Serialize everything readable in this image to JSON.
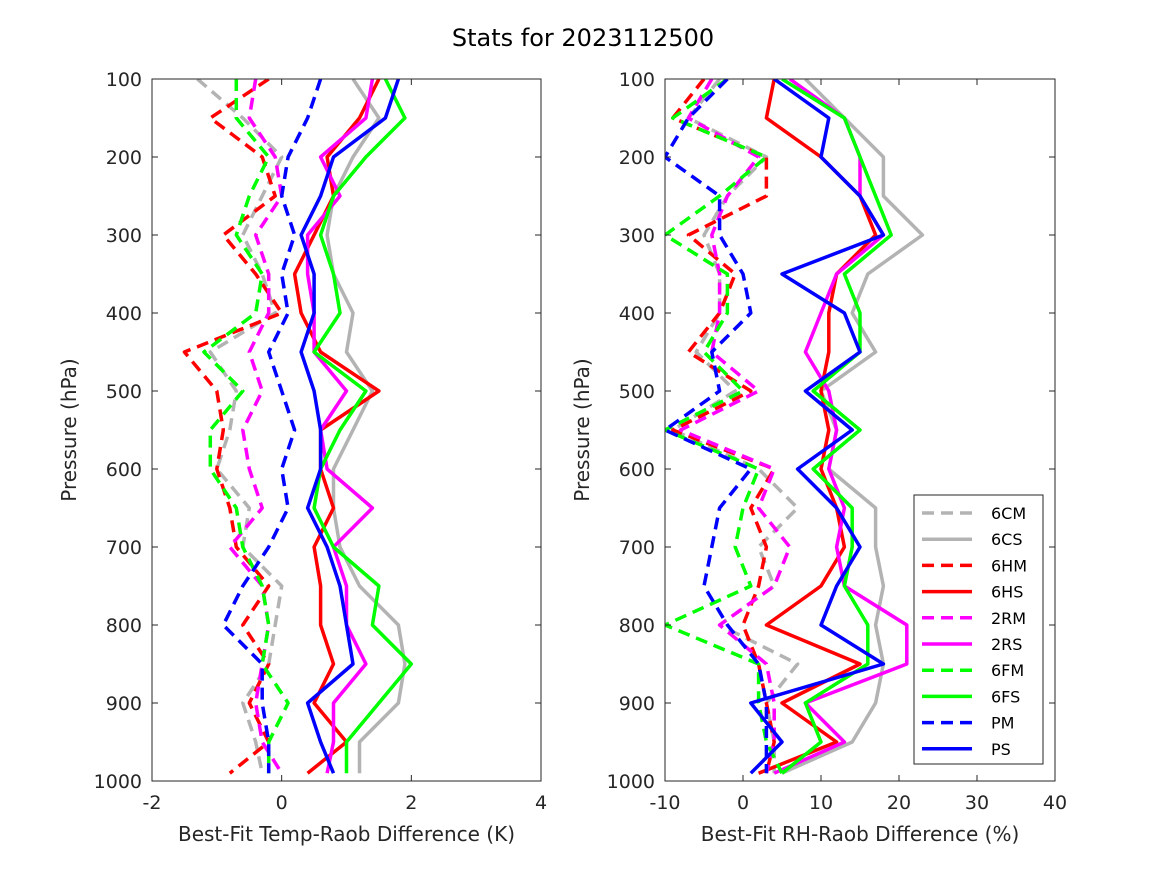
{
  "figure": {
    "title": "Stats for 2023112500"
  },
  "legend": {
    "placement": "bottom-right of right panel",
    "entries": [
      {
        "key": "6CM",
        "color": "#b3b3b3",
        "dash": true
      },
      {
        "key": "6CS",
        "color": "#b3b3b3",
        "dash": false
      },
      {
        "key": "6HM",
        "color": "#ff0000",
        "dash": true
      },
      {
        "key": "6HS",
        "color": "#ff0000",
        "dash": false
      },
      {
        "key": "2RM",
        "color": "#ff00ff",
        "dash": true
      },
      {
        "key": "2RS",
        "color": "#ff00ff",
        "dash": false
      },
      {
        "key": "6FM",
        "color": "#00ff00",
        "dash": true
      },
      {
        "key": "6FS",
        "color": "#00ff00",
        "dash": false
      },
      {
        "key": "PM",
        "color": "#0000ff",
        "dash": true
      },
      {
        "key": "PS",
        "color": "#0000ff",
        "dash": false
      }
    ]
  },
  "chart_data": [
    {
      "type": "line",
      "title": "",
      "xlabel": "Best-Fit Temp-Raob Difference (K)",
      "ylabel": "Pressure (hPa)",
      "xlim": [
        -2,
        4
      ],
      "ylim": [
        100,
        1000
      ],
      "y_reversed": true,
      "xticks": [
        "-2",
        "0",
        "2",
        "4"
      ],
      "yticks": [
        "100",
        "200",
        "300",
        "400",
        "500",
        "600",
        "700",
        "800",
        "900",
        "1000"
      ],
      "pressure": [
        100,
        150,
        200,
        250,
        300,
        350,
        400,
        450,
        500,
        550,
        600,
        650,
        700,
        750,
        800,
        850,
        900,
        950,
        990
      ],
      "series": [
        {
          "name": "6CM",
          "values": [
            -1.3,
            -0.6,
            0.0,
            -0.3,
            -0.6,
            -0.3,
            -0.1,
            -1.1,
            -0.7,
            -0.8,
            -1.0,
            -0.5,
            -0.6,
            0.0,
            -0.1,
            -0.2,
            -0.6,
            -0.4,
            -0.3
          ]
        },
        {
          "name": "6CS",
          "values": [
            1.1,
            1.5,
            1.1,
            0.8,
            0.7,
            0.8,
            1.1,
            1.0,
            1.4,
            1.1,
            0.8,
            0.8,
            0.9,
            1.2,
            1.8,
            1.9,
            1.8,
            1.2,
            1.2
          ]
        },
        {
          "name": "6HM",
          "values": [
            -0.2,
            -1.1,
            -0.3,
            -0.1,
            -0.9,
            -0.4,
            0.0,
            -1.5,
            -1.0,
            -0.9,
            -1.0,
            -0.8,
            -0.7,
            -0.2,
            -0.6,
            -0.2,
            -0.5,
            -0.2,
            -0.8
          ]
        },
        {
          "name": "6HS",
          "values": [
            1.5,
            1.2,
            0.7,
            0.8,
            0.5,
            0.2,
            0.3,
            0.6,
            1.5,
            0.6,
            0.6,
            0.8,
            0.5,
            0.6,
            0.6,
            0.8,
            0.5,
            1.0,
            0.4
          ]
        },
        {
          "name": "2RM",
          "values": [
            -0.4,
            -0.5,
            -0.1,
            0.0,
            -0.4,
            -0.2,
            -0.2,
            -0.5,
            -0.3,
            -0.6,
            -0.5,
            -0.3,
            -0.8,
            -0.3,
            -0.2,
            -0.3,
            -0.4,
            -0.3,
            0.0
          ]
        },
        {
          "name": "2RS",
          "values": [
            1.4,
            1.3,
            0.6,
            0.9,
            0.4,
            0.4,
            0.5,
            0.5,
            1.0,
            0.6,
            0.7,
            1.4,
            0.8,
            1.0,
            1.0,
            1.3,
            0.8,
            0.8,
            0.7
          ]
        },
        {
          "name": "6FM",
          "values": [
            -0.7,
            -0.7,
            -0.2,
            -0.5,
            -0.7,
            -0.3,
            -0.4,
            -1.2,
            -0.6,
            -1.1,
            -1.1,
            -0.7,
            -0.6,
            -0.3,
            -0.2,
            -0.3,
            0.1,
            -0.2,
            -0.2
          ]
        },
        {
          "name": "6FS",
          "values": [
            1.6,
            1.9,
            1.3,
            0.8,
            0.6,
            0.8,
            0.9,
            0.5,
            1.3,
            0.9,
            0.6,
            0.5,
            0.8,
            1.5,
            1.4,
            2.0,
            1.5,
            1.0,
            1.0
          ]
        },
        {
          "name": "PM",
          "values": [
            0.6,
            0.4,
            0.1,
            0.0,
            0.2,
            0.0,
            0.1,
            -0.2,
            0.0,
            0.2,
            0.0,
            0.1,
            -0.2,
            -0.6,
            -0.9,
            -0.3,
            -0.3,
            -0.2,
            -0.2
          ]
        },
        {
          "name": "PS",
          "values": [
            1.8,
            1.6,
            0.8,
            0.6,
            0.3,
            0.5,
            0.5,
            0.3,
            0.5,
            0.6,
            0.6,
            0.4,
            0.7,
            0.9,
            1.0,
            1.1,
            0.4,
            0.6,
            0.8
          ]
        }
      ]
    },
    {
      "type": "line",
      "title": "",
      "xlabel": "Best-Fit RH-Raob Difference (%)",
      "ylabel": "Pressure (hPa)",
      "xlim": [
        -10,
        40
      ],
      "ylim": [
        100,
        1000
      ],
      "y_reversed": true,
      "xticks": [
        "-10",
        "0",
        "10",
        "20",
        "30",
        "40"
      ],
      "yticks": [
        "100",
        "200",
        "300",
        "400",
        "500",
        "600",
        "700",
        "800",
        "900",
        "1000"
      ],
      "pressure": [
        100,
        150,
        200,
        250,
        300,
        350,
        400,
        450,
        500,
        550,
        600,
        650,
        700,
        750,
        800,
        850,
        900,
        950,
        990
      ],
      "series": [
        {
          "name": "6CM",
          "values": [
            -3,
            -7,
            3,
            -2,
            -5,
            -3,
            -3,
            -6,
            -1,
            -9,
            2,
            7,
            2,
            4,
            -3,
            7,
            3,
            4,
            4
          ]
        },
        {
          "name": "6CS",
          "values": [
            8,
            13,
            18,
            18,
            23,
            16,
            14,
            17,
            10,
            12,
            11,
            17,
            17,
            18,
            17,
            18,
            17,
            14,
            5
          ]
        },
        {
          "name": "6HM",
          "values": [
            -5,
            -9,
            3,
            3,
            -7,
            -1,
            -3,
            -7,
            1,
            -9,
            4,
            1,
            3,
            2,
            0,
            2,
            3,
            4,
            3
          ]
        },
        {
          "name": "6HS",
          "values": [
            4,
            3,
            10,
            15,
            17,
            12,
            11,
            11,
            10,
            11,
            10,
            12,
            13,
            10,
            3,
            15,
            5,
            12,
            2
          ]
        },
        {
          "name": "2RM",
          "values": [
            -4,
            -7,
            2,
            -2,
            -4,
            -3,
            -3,
            -4,
            2,
            -8,
            4,
            2,
            6,
            4,
            -3,
            3,
            4,
            4,
            3
          ]
        },
        {
          "name": "2RS",
          "values": [
            6,
            13,
            15,
            15,
            18,
            12,
            10,
            8,
            11,
            12,
            11,
            13,
            12,
            13,
            21,
            21,
            8,
            13,
            4
          ]
        },
        {
          "name": "6FM",
          "values": [
            -2,
            -9,
            3,
            -3,
            -10,
            -2,
            -2,
            -5,
            0,
            -10,
            2,
            0,
            -1,
            1,
            -10,
            2,
            2,
            3,
            5
          ]
        },
        {
          "name": "6FS",
          "values": [
            5,
            13,
            15,
            17,
            19,
            13,
            15,
            15,
            9,
            15,
            9,
            14,
            14,
            13,
            16,
            16,
            8,
            10,
            5
          ]
        },
        {
          "name": "PM",
          "values": [
            -2,
            -7,
            -10,
            -3,
            -3,
            0,
            1,
            -4,
            -3,
            -10,
            1,
            -3,
            -4,
            -5,
            -2,
            2,
            3,
            3,
            3
          ]
        },
        {
          "name": "PS",
          "values": [
            4,
            11,
            10,
            15,
            18,
            5,
            13,
            15,
            8,
            14,
            7,
            12,
            15,
            12,
            10,
            18,
            1,
            5,
            1
          ]
        }
      ]
    }
  ]
}
